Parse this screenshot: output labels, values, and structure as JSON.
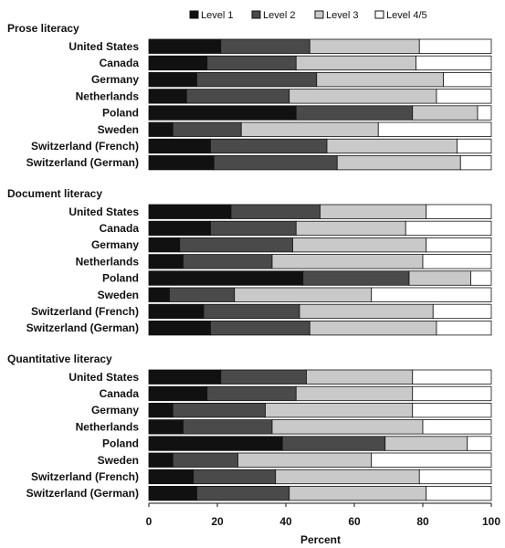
{
  "chart_data": {
    "type": "bar",
    "orientation": "horizontal",
    "stacked": true,
    "xlabel": "Percent",
    "xlim": [
      0,
      100
    ],
    "x_ticks": [
      "0",
      "20",
      "40",
      "60",
      "80",
      "100"
    ],
    "legend": {
      "position": "top",
      "entries": [
        "Level 1",
        "Level 2",
        "Level 3",
        "Level 4/5"
      ]
    },
    "series_colors": [
      "#111111",
      "#4a4a4a",
      "#c9c9c9",
      "#ffffff"
    ],
    "groups": [
      {
        "title": "Prose literacy",
        "categories": [
          "United States",
          "Canada",
          "Germany",
          "Netherlands",
          "Poland",
          "Sweden",
          "Switzerland (French)",
          "Switzerland (German)"
        ],
        "series": [
          {
            "name": "Level 1",
            "values": [
              21,
              17,
              14,
              11,
              43,
              7,
              18,
              19
            ]
          },
          {
            "name": "Level 2",
            "values": [
              26,
              26,
              35,
              30,
              34,
              20,
              34,
              36
            ]
          },
          {
            "name": "Level 3",
            "values": [
              32,
              35,
              37,
              43,
              19,
              40,
              38,
              36
            ]
          },
          {
            "name": "Level 4/5",
            "values": [
              21,
              22,
              14,
              16,
              4,
              33,
              10,
              9
            ]
          }
        ]
      },
      {
        "title": "Document literacy",
        "categories": [
          "United States",
          "Canada",
          "Germany",
          "Netherlands",
          "Poland",
          "Sweden",
          "Switzerland (French)",
          "Switzerland (German)"
        ],
        "series": [
          {
            "name": "Level 1",
            "values": [
              24,
              18,
              9,
              10,
              45,
              6,
              16,
              18
            ]
          },
          {
            "name": "Level 2",
            "values": [
              26,
              25,
              33,
              26,
              31,
              19,
              28,
              29
            ]
          },
          {
            "name": "Level 3",
            "values": [
              31,
              32,
              39,
              44,
              18,
              40,
              39,
              37
            ]
          },
          {
            "name": "Level 4/5",
            "values": [
              19,
              25,
              19,
              20,
              6,
              35,
              17,
              16
            ]
          }
        ]
      },
      {
        "title": "Quantitative literacy",
        "categories": [
          "United States",
          "Canada",
          "Germany",
          "Netherlands",
          "Poland",
          "Sweden",
          "Switzerland (French)",
          "Switzerland (German)"
        ],
        "series": [
          {
            "name": "Level 1",
            "values": [
              21,
              17,
              7,
              10,
              39,
              7,
              13,
              14
            ]
          },
          {
            "name": "Level 2",
            "values": [
              25,
              26,
              27,
              26,
              30,
              19,
              24,
              27
            ]
          },
          {
            "name": "Level 3",
            "values": [
              31,
              34,
              43,
              44,
              24,
              39,
              42,
              40
            ]
          },
          {
            "name": "Level 4/5",
            "values": [
              23,
              23,
              23,
              20,
              7,
              35,
              21,
              19
            ]
          }
        ]
      }
    ]
  }
}
